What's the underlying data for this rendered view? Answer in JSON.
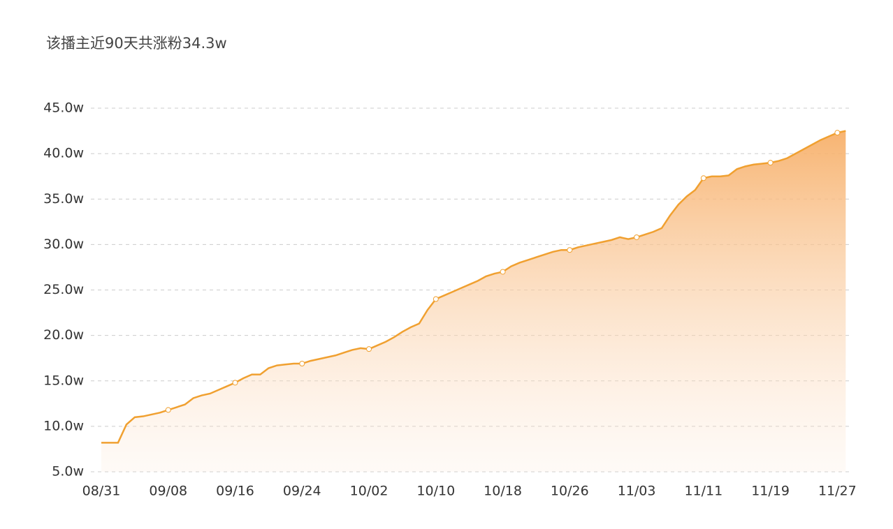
{
  "chart_data": {
    "type": "area",
    "title": "该播主近90天共涨粉34.3w",
    "categories": [
      "08/31",
      null,
      null,
      null,
      null,
      null,
      null,
      null,
      "09/08",
      null,
      null,
      null,
      null,
      null,
      null,
      null,
      "09/16",
      null,
      null,
      null,
      null,
      null,
      null,
      null,
      "09/24",
      null,
      null,
      null,
      null,
      null,
      null,
      null,
      "10/02",
      null,
      null,
      null,
      null,
      null,
      null,
      null,
      "10/10",
      null,
      null,
      null,
      null,
      null,
      null,
      null,
      "10/18",
      null,
      null,
      null,
      null,
      null,
      null,
      null,
      "10/26",
      null,
      null,
      null,
      null,
      null,
      null,
      null,
      "11/03",
      null,
      null,
      null,
      null,
      null,
      null,
      null,
      "11/11",
      null,
      null,
      null,
      null,
      null,
      null,
      null,
      "11/19",
      null,
      null,
      null,
      null,
      null,
      null,
      null,
      "11/27",
      null
    ],
    "values": [
      8.2,
      8.2,
      8.2,
      10.2,
      11.0,
      11.1,
      11.3,
      11.5,
      11.8,
      12.1,
      12.4,
      13.1,
      13.4,
      13.6,
      14.0,
      14.4,
      14.8,
      15.3,
      15.7,
      15.7,
      16.4,
      16.7,
      16.8,
      16.9,
      16.9,
      17.2,
      17.4,
      17.6,
      17.8,
      18.1,
      18.4,
      18.6,
      18.5,
      18.9,
      19.3,
      19.8,
      20.4,
      20.9,
      21.3,
      22.8,
      24.0,
      24.4,
      24.8,
      25.2,
      25.6,
      26.0,
      26.5,
      26.8,
      27.0,
      27.6,
      28.0,
      28.3,
      28.6,
      28.9,
      29.2,
      29.4,
      29.4,
      29.7,
      29.9,
      30.1,
      30.3,
      30.5,
      30.8,
      30.6,
      30.8,
      31.1,
      31.4,
      31.8,
      33.2,
      34.4,
      35.3,
      36.0,
      37.3,
      37.5,
      37.5,
      37.6,
      38.3,
      38.6,
      38.8,
      38.9,
      39.0,
      39.2,
      39.5,
      40.0,
      40.5,
      41.0,
      41.5,
      41.9,
      42.3,
      42.5
    ],
    "color": "#f0a030",
    "ylim": [
      5,
      45
    ],
    "yticks": [
      {
        "value": 5,
        "label": "5.0w"
      },
      {
        "value": 10,
        "label": "10.0w"
      },
      {
        "value": 15,
        "label": "15.0w"
      },
      {
        "value": 20,
        "label": "20.0w"
      },
      {
        "value": 25,
        "label": "25.0w"
      },
      {
        "value": 30,
        "label": "30.0w"
      },
      {
        "value": 35,
        "label": "35.0w"
      },
      {
        "value": 40,
        "label": "40.0w"
      },
      {
        "value": 45,
        "label": "45.0w"
      }
    ],
    "grid": true
  }
}
